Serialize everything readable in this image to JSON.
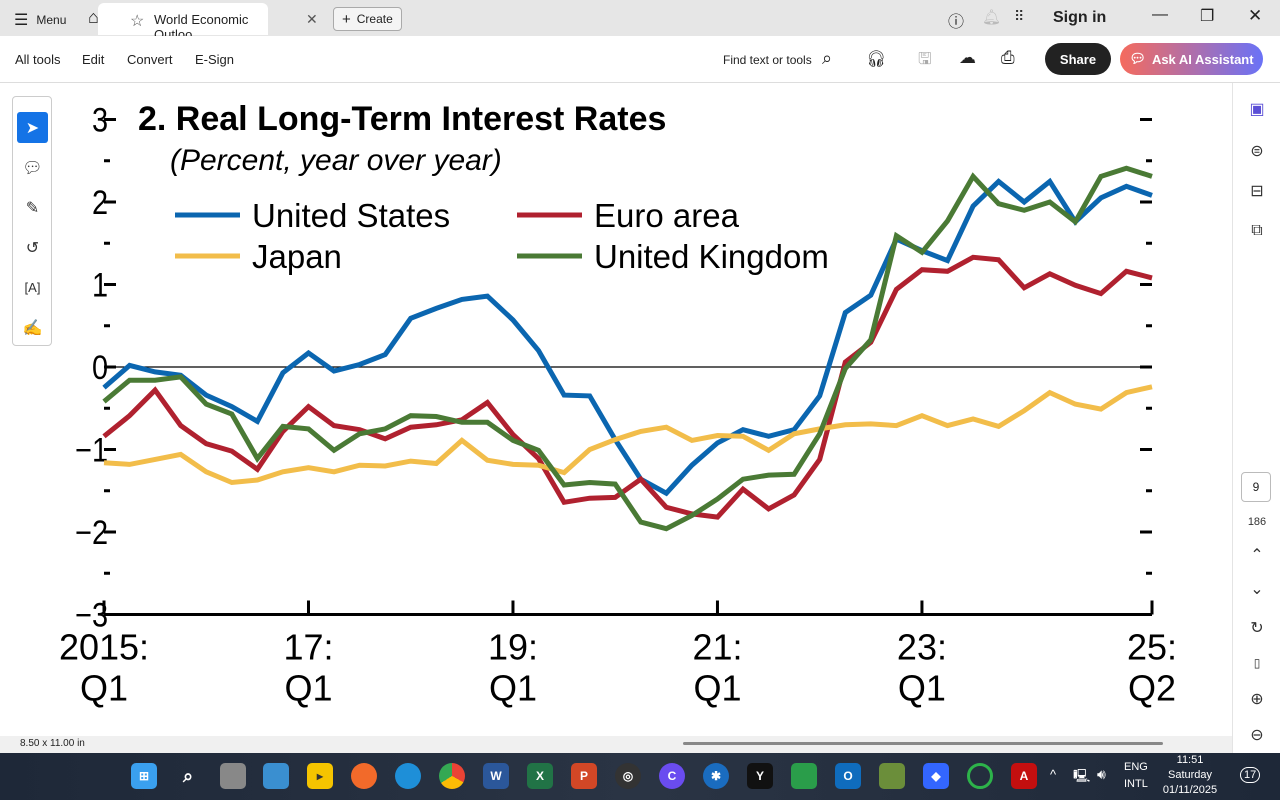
{
  "titlebar": {
    "menu": "Menu",
    "tab_title": "World Economic Outloo...",
    "create": "Create",
    "sign_in": "Sign in"
  },
  "toolbar": {
    "items": [
      "All tools",
      "Edit",
      "Convert",
      "E-Sign"
    ],
    "find": "Find text or tools",
    "share": "Share",
    "ai": "Ask AI Assistant"
  },
  "sidebar": {
    "page": "9",
    "total": "186"
  },
  "status": {
    "page_size": "8.50 x 11.00 in"
  },
  "taskbar": {
    "lang1": "ENG",
    "lang2": "INTL",
    "time": "11:51",
    "day": "Saturday",
    "date": "01/11/2025",
    "notifications": "17"
  },
  "colors": {
    "us": "#0b66b0",
    "euro": "#b0212f",
    "japan": "#f2bd4a",
    "uk": "#4a7a35"
  },
  "chart_data": {
    "type": "line",
    "title": "2. Real Long-Term Interest Rates",
    "subtitle": "(Percent, year over year)",
    "xlabel": "",
    "ylabel": "",
    "ylim": [
      -3,
      3
    ],
    "yticks": [
      "3",
      "2",
      "1",
      "0",
      "−1",
      "−2",
      "−3"
    ],
    "xticks": [
      {
        "l1": "2015:",
        "l2": "Q1",
        "i": 0
      },
      {
        "l1": "17:",
        "l2": "Q1",
        "i": 8
      },
      {
        "l1": "19:",
        "l2": "Q1",
        "i": 16
      },
      {
        "l1": "21:",
        "l2": "Q1",
        "i": 24
      },
      {
        "l1": "23:",
        "l2": "Q1",
        "i": 32
      },
      {
        "l1": "25:",
        "l2": "Q2",
        "i": 41
      }
    ],
    "x_range": "2015:Q1 to 2025:Q2 (quarterly)",
    "series": [
      {
        "name": "United States",
        "key": "us",
        "values": [
          -0.25,
          0.02,
          -0.06,
          -0.1,
          -0.34,
          -0.48,
          -0.66,
          -0.07,
          0.17,
          -0.05,
          0.03,
          0.15,
          0.59,
          0.71,
          0.82,
          0.86,
          0.57,
          0.2,
          -0.34,
          -0.35,
          -0.88,
          -1.36,
          -1.53,
          -1.19,
          -0.92,
          -0.76,
          -0.84,
          -0.76,
          -0.35,
          0.66,
          0.87,
          1.55,
          1.41,
          1.29,
          1.95,
          2.25,
          2.0,
          2.25,
          1.76,
          2.05,
          2.19,
          2.08
        ]
      },
      {
        "name": "Euro area",
        "key": "euro",
        "values": [
          -0.84,
          -0.59,
          -0.28,
          -0.71,
          -0.93,
          -1.02,
          -1.24,
          -0.78,
          -0.48,
          -0.71,
          -0.76,
          -0.87,
          -0.73,
          -0.7,
          -0.64,
          -0.43,
          -0.82,
          -1.11,
          -1.64,
          -1.59,
          -1.58,
          -1.36,
          -1.7,
          -1.78,
          -1.82,
          -1.48,
          -1.72,
          -1.55,
          -1.12,
          0.06,
          0.3,
          0.94,
          1.18,
          1.16,
          1.33,
          1.3,
          0.96,
          1.13,
          0.99,
          0.89,
          1.16,
          1.08
        ]
      },
      {
        "name": "Japan",
        "key": "japan",
        "values": [
          -1.16,
          -1.18,
          -1.12,
          -1.06,
          -1.27,
          -1.4,
          -1.37,
          -1.27,
          -1.22,
          -1.27,
          -1.19,
          -1.2,
          -1.14,
          -1.17,
          -0.89,
          -1.13,
          -1.18,
          -1.19,
          -1.28,
          -1.0,
          -0.88,
          -0.78,
          -0.73,
          -0.89,
          -0.83,
          -0.84,
          -1.01,
          -0.81,
          -0.75,
          -0.7,
          -0.69,
          -0.71,
          -0.59,
          -0.71,
          -0.63,
          -0.72,
          -0.53,
          -0.31,
          -0.45,
          -0.51,
          -0.31,
          -0.24
        ]
      },
      {
        "name": "United Kingdom",
        "key": "uk",
        "values": [
          -0.42,
          -0.16,
          -0.16,
          -0.12,
          -0.45,
          -0.57,
          -1.11,
          -0.72,
          -0.75,
          -1.01,
          -0.81,
          -0.75,
          -0.59,
          -0.6,
          -0.67,
          -0.67,
          -0.89,
          -1.01,
          -1.43,
          -1.4,
          -1.42,
          -1.88,
          -1.96,
          -1.8,
          -1.6,
          -1.36,
          -1.31,
          -1.3,
          -0.81,
          -0.02,
          0.33,
          1.59,
          1.39,
          1.77,
          2.31,
          1.98,
          1.9,
          2.0,
          1.76,
          2.31,
          2.41,
          2.31
        ]
      }
    ],
    "legend": "top-left, two columns"
  }
}
